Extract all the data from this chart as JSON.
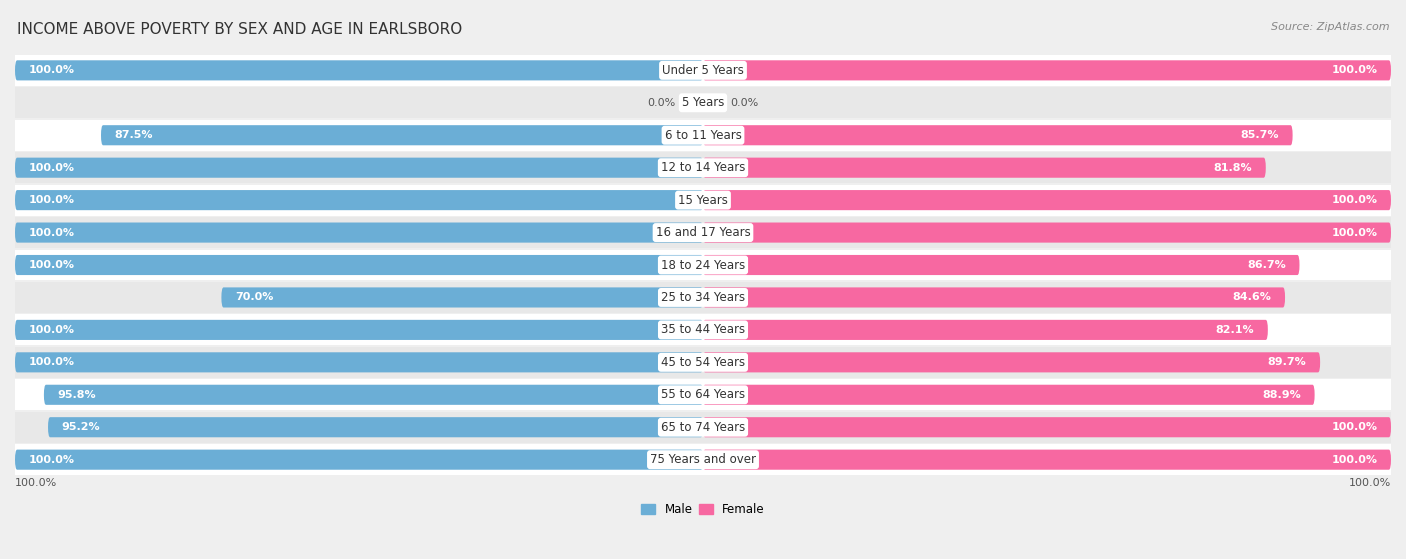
{
  "title": "INCOME ABOVE POVERTY BY SEX AND AGE IN EARLSBORO",
  "source": "Source: ZipAtlas.com",
  "categories": [
    "Under 5 Years",
    "5 Years",
    "6 to 11 Years",
    "12 to 14 Years",
    "15 Years",
    "16 and 17 Years",
    "18 to 24 Years",
    "25 to 34 Years",
    "35 to 44 Years",
    "45 to 54 Years",
    "55 to 64 Years",
    "65 to 74 Years",
    "75 Years and over"
  ],
  "male_values": [
    100.0,
    0.0,
    87.5,
    100.0,
    100.0,
    100.0,
    100.0,
    70.0,
    100.0,
    100.0,
    95.8,
    95.2,
    100.0
  ],
  "female_values": [
    100.0,
    0.0,
    85.7,
    81.8,
    100.0,
    100.0,
    86.7,
    84.6,
    82.1,
    89.7,
    88.9,
    100.0,
    100.0
  ],
  "male_color": "#6BAED6",
  "female_color": "#F768A1",
  "male_color_light": "#C6DBEF",
  "female_color_light": "#FCC5DE",
  "male_label": "Male",
  "female_label": "Female",
  "bg_color": "#EFEFEF",
  "row_color_odd": "#FFFFFF",
  "row_color_even": "#E8E8E8",
  "title_fontsize": 11,
  "source_fontsize": 8,
  "label_fontsize": 8.5,
  "value_fontsize": 8,
  "bar_height": 0.62,
  "xlim": 100
}
